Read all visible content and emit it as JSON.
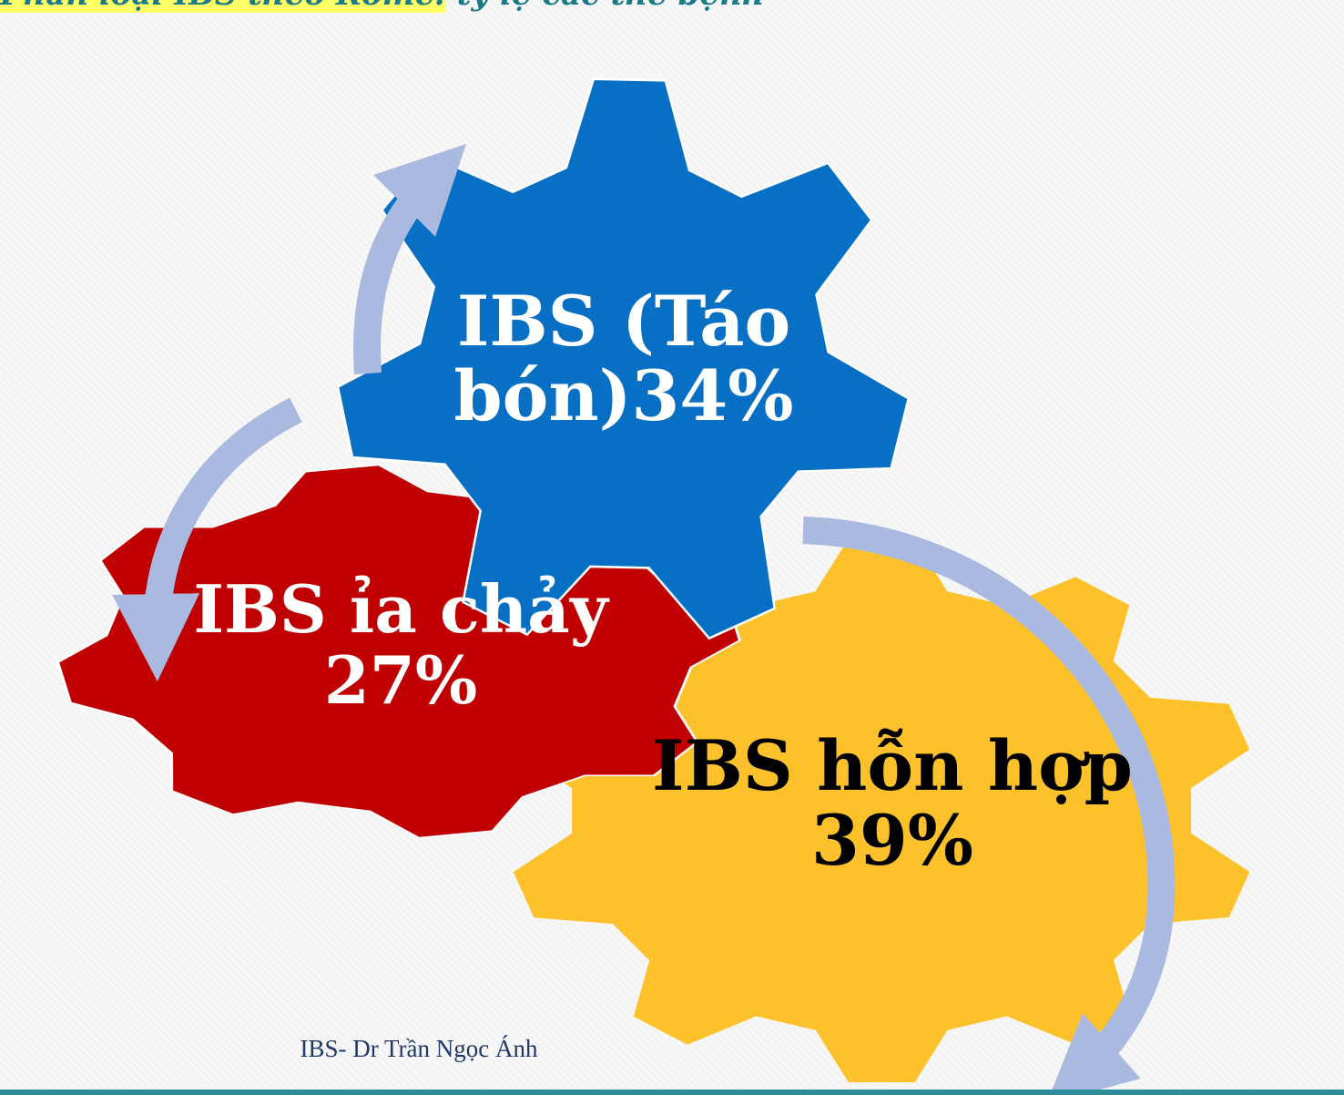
{
  "slide": {
    "title_highlight": "Phân loại IBS theo Rome:",
    "title_rest": " tỷ lệ các thể bệnh",
    "footer": "IBS- Dr Trần Ngọc Ánh"
  },
  "gears": {
    "blue": {
      "line1": "IBS (Táo",
      "line2": "bón)34%",
      "color": "#0870c4"
    },
    "red": {
      "line1": "IBS ỉa chảy",
      "line2": "27%",
      "color": "#c00000"
    },
    "yellow": {
      "line1": "IBS  hỗn hợp",
      "line2": "39%",
      "color": "#fdc12c"
    }
  },
  "arrow_color": "#aab9df"
}
